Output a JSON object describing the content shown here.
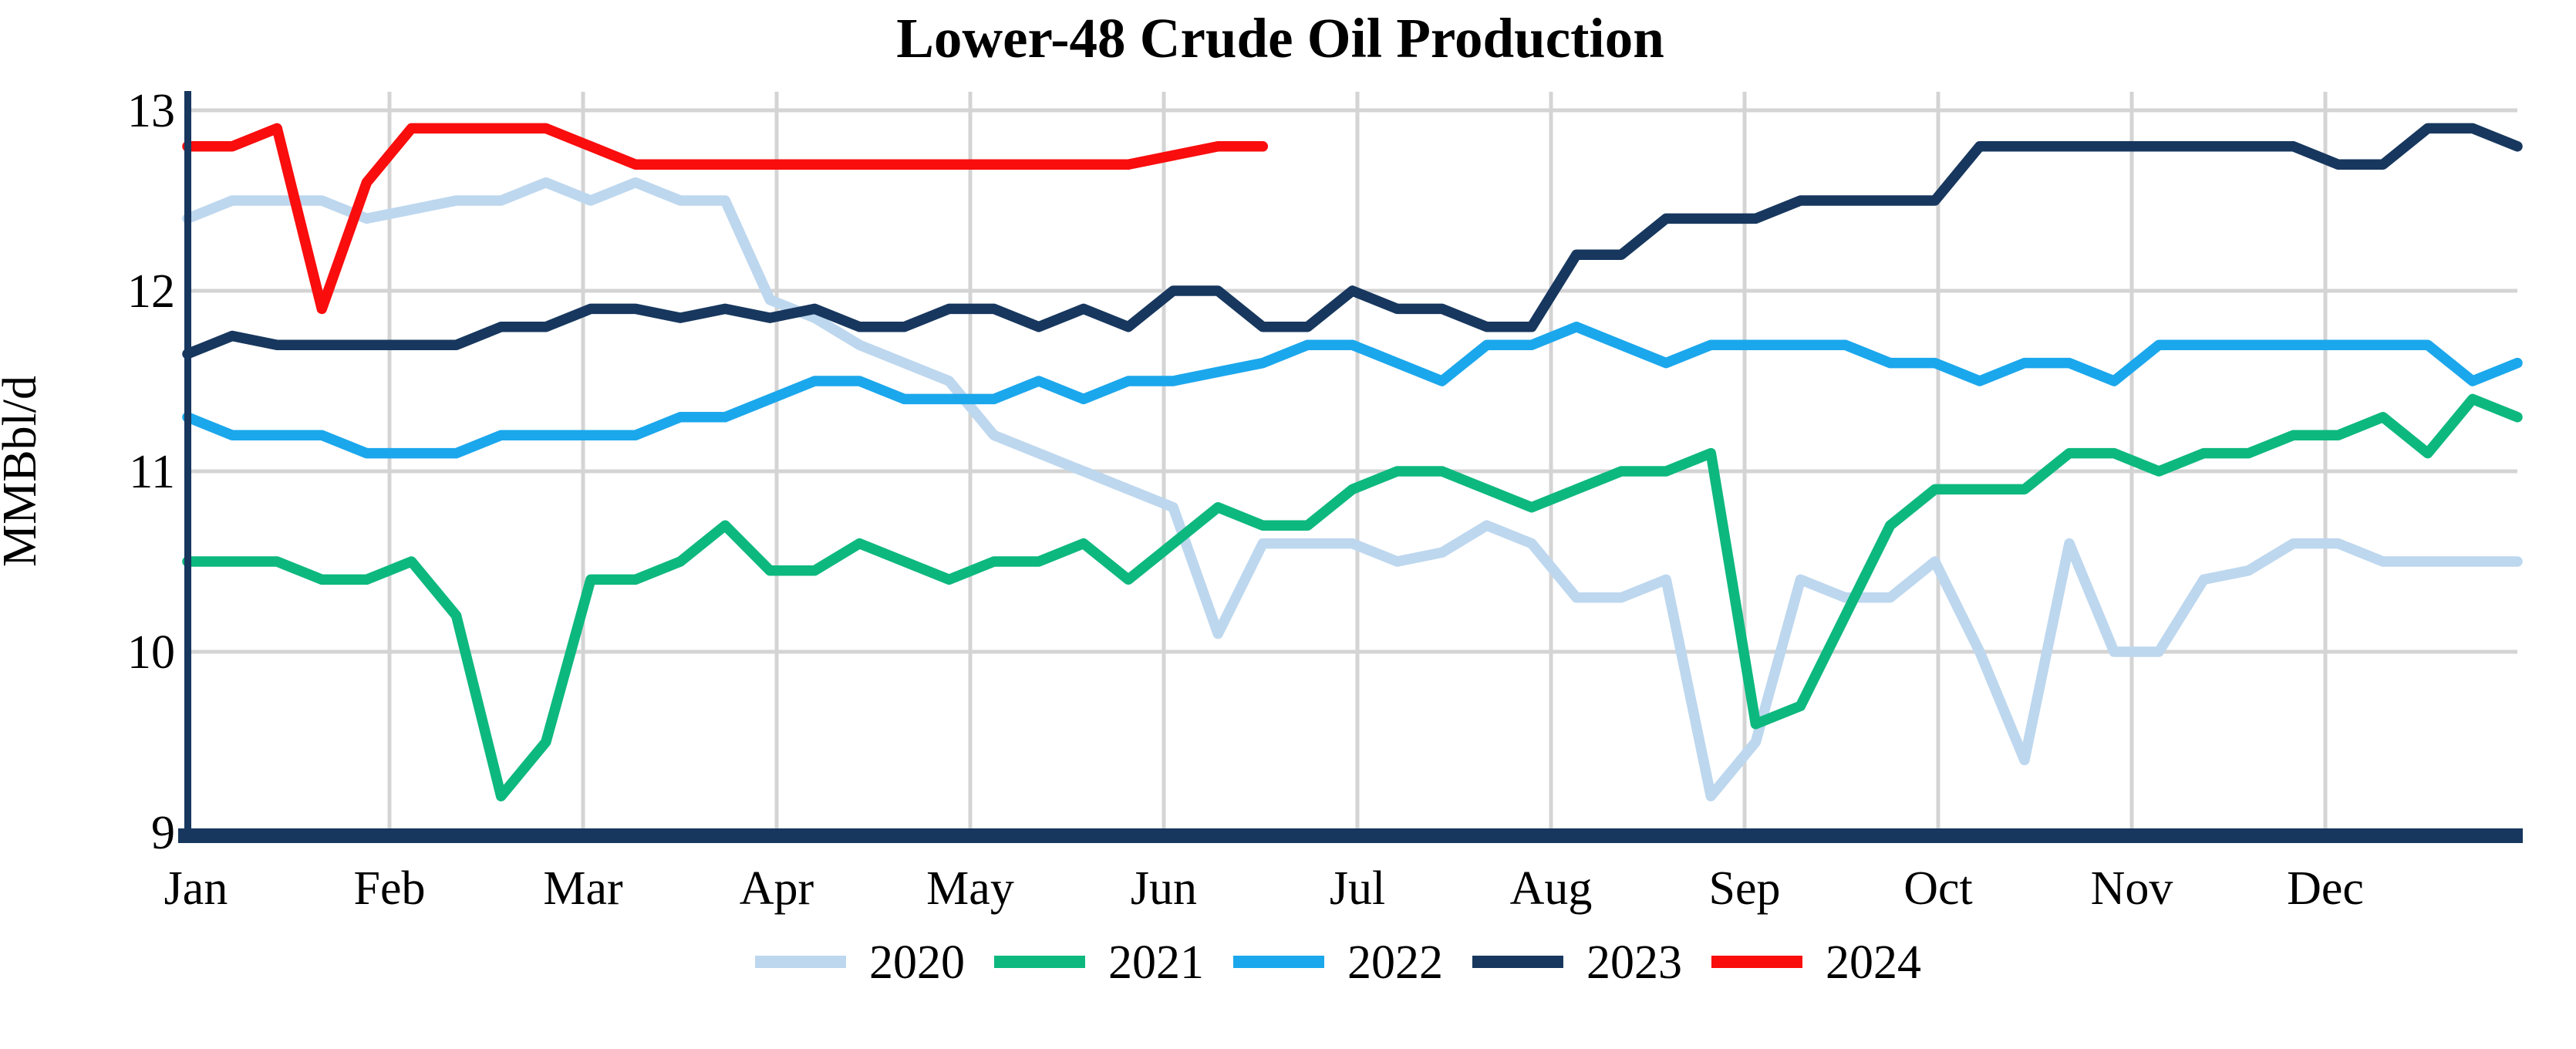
{
  "page": {
    "title": "Lower-48 Crude Oil Production"
  },
  "chart_data": {
    "type": "line",
    "title": "Lower-48 Crude Oil Production",
    "xlabel": "",
    "ylabel": "MMBbl/d",
    "ylim": [
      9,
      13
    ],
    "yticks": [
      9,
      10,
      11,
      12,
      13
    ],
    "x_unit": "week of year (weekly data, Jan through Dec)",
    "grid": true,
    "legend_position": "bottom",
    "background_color": "#FFFFFF",
    "axis_color": "#17375E",
    "grid_color": "#D4D4D4",
    "text_color": "#000000",
    "month_labels": [
      "Jan",
      "Feb",
      "Mar",
      "Apr",
      "May",
      "Jun",
      "Jul",
      "Aug",
      "Sep",
      "Oct",
      "Nov",
      "Dec"
    ],
    "series": [
      {
        "name": "2020",
        "color": "#BDD7EE",
        "values": [
          12.4,
          12.5,
          12.5,
          12.5,
          12.4,
          12.45,
          12.5,
          12.5,
          12.6,
          12.5,
          12.6,
          12.5,
          12.5,
          11.95,
          11.85,
          11.7,
          11.6,
          11.5,
          11.2,
          11.1,
          11.0,
          10.9,
          10.8,
          10.1,
          10.6,
          10.6,
          10.6,
          10.5,
          10.55,
          10.7,
          10.6,
          10.3,
          10.3,
          10.4,
          9.2,
          9.5,
          10.4,
          10.3,
          10.3,
          10.5,
          10.0,
          9.4,
          10.6,
          10.0,
          10.0,
          10.4,
          10.45,
          10.6,
          10.6,
          10.5,
          10.5,
          10.5,
          10.5
        ]
      },
      {
        "name": "2021",
        "color": "#0DB87E",
        "values": [
          10.5,
          10.5,
          10.5,
          10.4,
          10.4,
          10.5,
          10.2,
          9.2,
          9.5,
          10.4,
          10.4,
          10.5,
          10.7,
          10.45,
          10.45,
          10.6,
          10.5,
          10.4,
          10.5,
          10.5,
          10.6,
          10.4,
          10.6,
          10.8,
          10.7,
          10.7,
          10.9,
          11.0,
          11.0,
          10.9,
          10.8,
          10.9,
          11.0,
          11.0,
          11.1,
          9.6,
          9.7,
          10.2,
          10.7,
          10.9,
          10.9,
          10.9,
          11.1,
          11.1,
          11.0,
          11.1,
          11.1,
          11.2,
          11.2,
          11.3,
          11.1,
          11.4,
          11.3
        ]
      },
      {
        "name": "2022",
        "color": "#1BA7EC",
        "values": [
          11.3,
          11.2,
          11.2,
          11.2,
          11.1,
          11.1,
          11.1,
          11.2,
          11.2,
          11.2,
          11.2,
          11.3,
          11.3,
          11.4,
          11.5,
          11.5,
          11.4,
          11.4,
          11.4,
          11.5,
          11.4,
          11.5,
          11.5,
          11.55,
          11.6,
          11.7,
          11.7,
          11.6,
          11.5,
          11.7,
          11.7,
          11.8,
          11.7,
          11.6,
          11.7,
          11.7,
          11.7,
          11.7,
          11.6,
          11.6,
          11.5,
          11.6,
          11.6,
          11.5,
          11.7,
          11.7,
          11.7,
          11.7,
          11.7,
          11.7,
          11.7,
          11.5,
          11.6
        ]
      },
      {
        "name": "2023",
        "color": "#17375E",
        "values": [
          11.65,
          11.75,
          11.7,
          11.7,
          11.7,
          11.7,
          11.7,
          11.8,
          11.8,
          11.9,
          11.9,
          11.85,
          11.9,
          11.85,
          11.9,
          11.8,
          11.8,
          11.9,
          11.9,
          11.8,
          11.9,
          11.8,
          12.0,
          12.0,
          11.8,
          11.8,
          12.0,
          11.9,
          11.9,
          11.8,
          11.8,
          12.2,
          12.2,
          12.4,
          12.4,
          12.4,
          12.5,
          12.5,
          12.5,
          12.5,
          12.8,
          12.8,
          12.8,
          12.8,
          12.8,
          12.8,
          12.8,
          12.8,
          12.7,
          12.7,
          12.9,
          12.9,
          12.8
        ]
      },
      {
        "name": "2024",
        "color": "#F90D0D",
        "values": [
          12.8,
          12.8,
          12.9,
          11.9,
          12.6,
          12.9,
          12.9,
          12.9,
          12.9,
          12.8,
          12.7,
          12.7,
          12.7,
          12.7,
          12.7,
          12.7,
          12.7,
          12.7,
          12.7,
          12.7,
          12.7,
          12.7,
          12.75,
          12.8,
          12.8
        ]
      }
    ]
  }
}
